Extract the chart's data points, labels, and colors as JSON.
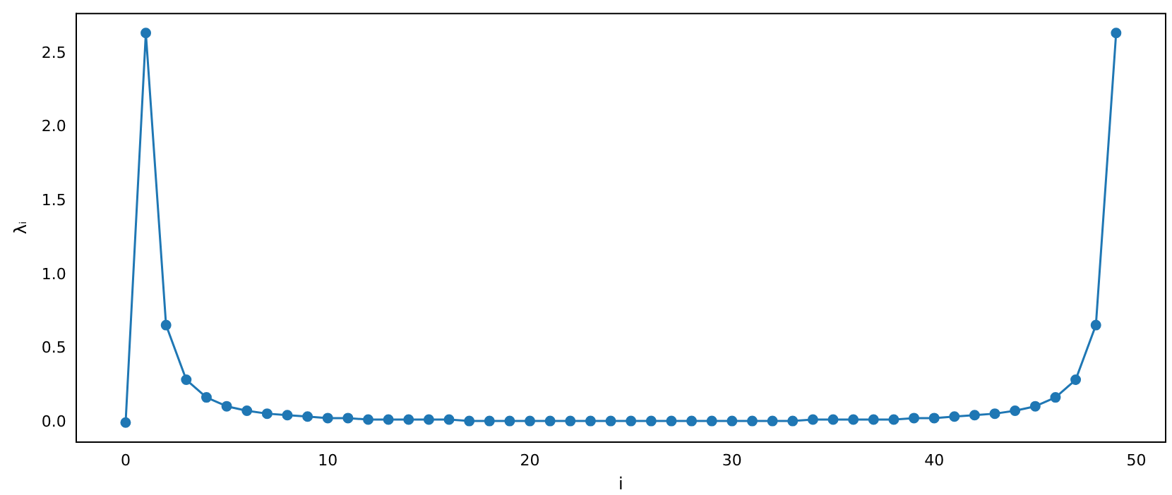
{
  "chart_data": {
    "type": "line",
    "xlabel": "i",
    "ylabel": "λᵢ",
    "x": [
      0,
      1,
      2,
      3,
      4,
      5,
      6,
      7,
      8,
      9,
      10,
      11,
      12,
      13,
      14,
      15,
      16,
      17,
      18,
      19,
      20,
      21,
      22,
      23,
      24,
      25,
      26,
      27,
      28,
      29,
      30,
      31,
      32,
      33,
      34,
      35,
      36,
      37,
      38,
      39,
      40,
      41,
      42,
      43,
      44,
      45,
      46,
      47,
      48,
      49
    ],
    "series": [
      {
        "color": "#1f77b4",
        "values": [
          0,
          2.64,
          0.66,
          0.29,
          0.17,
          0.11,
          0.08,
          0.06,
          0.05,
          0.04,
          0.03,
          0.03,
          0.02,
          0.02,
          0.02,
          0.02,
          0.02,
          0.01,
          0.01,
          0.01,
          0.01,
          0.01,
          0.01,
          0.01,
          0.01,
          0.01,
          0.01,
          0.01,
          0.01,
          0.01,
          0.01,
          0.01,
          0.01,
          0.01,
          0.02,
          0.02,
          0.02,
          0.02,
          0.02,
          0.03,
          0.03,
          0.04,
          0.05,
          0.06,
          0.08,
          0.11,
          0.17,
          0.29,
          0.66,
          2.64
        ]
      }
    ],
    "xlim": [
      -2.45,
      51.45
    ],
    "xticks": [
      0,
      10,
      20,
      30,
      40,
      50
    ],
    "ylim": [
      -0.132,
      2.772
    ],
    "yticks": [
      {
        "value": 0,
        "label": "0.0"
      },
      0.5,
      {
        "value": 1,
        "label": "1.0"
      },
      1.5,
      {
        "value": 2,
        "label": "2.0"
      },
      2.5
    ],
    "grid": false,
    "legend": false,
    "marker": "circle",
    "line_style": "solid"
  }
}
